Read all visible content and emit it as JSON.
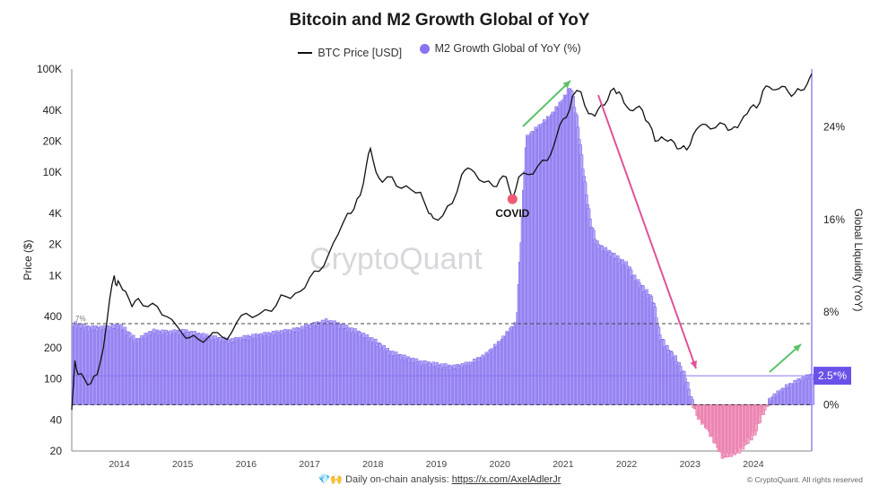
{
  "chart_data": {
    "type": "bar",
    "title": "Bitcoin and M2 Growth Global of YoY",
    "legend": [
      "BTC Price [USD]",
      "M2 Growth Global of YoY (%)"
    ],
    "legend_placement": "top-center",
    "ylabel_left": "Price ($)",
    "ylabel_right": "Global Liquidity (YoY)",
    "y_left_scale": "log",
    "y_left_ticks": [
      "100K",
      "40K",
      "20K",
      "10K",
      "4K",
      "2K",
      "1K",
      "400",
      "200",
      "100",
      "40",
      "20"
    ],
    "y_right_ticks": [
      "24%",
      "16%",
      "8%",
      "0%"
    ],
    "x_ticks": [
      "2014",
      "2015",
      "2016",
      "2017",
      "2018",
      "2019",
      "2020",
      "2021",
      "2022",
      "2023",
      "2024"
    ],
    "x_range": [
      2013.25,
      2024.92
    ],
    "ylim_left": [
      20,
      100000
    ],
    "ylim_right": [
      -4,
      29
    ],
    "reference_lines": [
      {
        "label": "7%",
        "value": 7
      },
      {
        "label": "2.5*%",
        "value": 2.5
      }
    ],
    "annotations": [
      "COVID"
    ],
    "watermark": "CryptoQuant",
    "btc_price": {
      "name": "BTC Price [USD]",
      "x": [
        2013.25,
        2013.3,
        2013.35,
        2013.45,
        2013.55,
        2013.65,
        2013.75,
        2013.85,
        2013.92,
        2013.96,
        2014.0,
        2014.1,
        2014.2,
        2014.3,
        2014.45,
        2014.6,
        2014.75,
        2014.9,
        2015.0,
        2015.1,
        2015.25,
        2015.4,
        2015.55,
        2015.7,
        2015.85,
        2016.0,
        2016.2,
        2016.4,
        2016.55,
        2016.7,
        2016.85,
        2017.0,
        2017.15,
        2017.3,
        2017.45,
        2017.6,
        2017.7,
        2017.8,
        2017.9,
        2017.96,
        2018.05,
        2018.15,
        2018.3,
        2018.45,
        2018.6,
        2018.75,
        2018.88,
        2018.95,
        2019.1,
        2019.25,
        2019.4,
        2019.5,
        2019.6,
        2019.75,
        2019.9,
        2020.0,
        2020.1,
        2020.2,
        2020.3,
        2020.45,
        2020.6,
        2020.75,
        2020.85,
        2020.95,
        2021.05,
        2021.15,
        2021.28,
        2021.4,
        2021.5,
        2021.6,
        2021.7,
        2021.8,
        2021.88,
        2021.96,
        2022.05,
        2022.15,
        2022.25,
        2022.35,
        2022.45,
        2022.55,
        2022.65,
        2022.75,
        2022.85,
        2022.95,
        2023.05,
        2023.15,
        2023.25,
        2023.4,
        2023.55,
        2023.65,
        2023.75,
        2023.85,
        2023.95,
        2024.05,
        2024.15,
        2024.25,
        2024.35,
        2024.45,
        2024.55,
        2024.65,
        2024.75,
        2024.85,
        2024.92
      ],
      "y": [
        50,
        150,
        110,
        100,
        90,
        110,
        200,
        600,
        1000,
        800,
        850,
        700,
        500,
        600,
        500,
        500,
        400,
        330,
        270,
        250,
        240,
        250,
        280,
        240,
        350,
        430,
        420,
        450,
        650,
        600,
        700,
        950,
        1100,
        1600,
        2500,
        4000,
        4400,
        6000,
        12000,
        17000,
        10000,
        8000,
        9000,
        7000,
        6800,
        6400,
        4000,
        3600,
        3800,
        5000,
        9500,
        11000,
        10000,
        8000,
        7300,
        8500,
        9000,
        5500,
        9000,
        9500,
        11500,
        13000,
        18000,
        29000,
        34000,
        55000,
        60000,
        37000,
        35000,
        45000,
        50000,
        65000,
        60000,
        47000,
        40000,
        42000,
        40000,
        30000,
        20000,
        22000,
        20000,
        19500,
        17000,
        16500,
        23000,
        28000,
        29000,
        27000,
        29000,
        26000,
        27000,
        35000,
        42000,
        42000,
        62000,
        67000,
        63000,
        68000,
        60000,
        58000,
        62000,
        72000,
        90000
      ]
    },
    "m2_growth": {
      "name": "M2 Growth Global of YoY (%)",
      "x": [
        2013.25,
        2013.5,
        2013.75,
        2014.0,
        2014.25,
        2014.5,
        2014.75,
        2015.0,
        2015.25,
        2015.5,
        2015.75,
        2016.0,
        2016.25,
        2016.5,
        2016.75,
        2017.0,
        2017.25,
        2017.5,
        2017.75,
        2018.0,
        2018.25,
        2018.5,
        2018.75,
        2019.0,
        2019.25,
        2019.5,
        2019.75,
        2020.0,
        2020.15,
        2020.25,
        2020.4,
        2020.6,
        2020.8,
        2021.0,
        2021.1,
        2021.2,
        2021.3,
        2021.4,
        2021.5,
        2021.6,
        2021.75,
        2022.0,
        2022.1,
        2022.25,
        2022.4,
        2022.5,
        2022.6,
        2022.75,
        2022.9,
        2023.0,
        2023.1,
        2023.25,
        2023.5,
        2023.75,
        2024.0,
        2024.1,
        2024.25,
        2024.5,
        2024.75,
        2024.9
      ],
      "y": [
        7.0,
        6.6,
        6.6,
        6.8,
        5.5,
        6.3,
        6.2,
        6.3,
        6.0,
        5.7,
        5.5,
        5.8,
        6.0,
        6.2,
        6.4,
        6.8,
        7.2,
        6.8,
        6.2,
        5.5,
        4.5,
        4.0,
        3.6,
        3.4,
        3.2,
        3.5,
        4.2,
        5.5,
        6.5,
        7.0,
        23.0,
        24.0,
        25.0,
        26.5,
        27.5,
        24.5,
        20.0,
        16.0,
        14.0,
        13.5,
        13.0,
        12.0,
        11.0,
        10.0,
        9.0,
        6.0,
        5.0,
        4.0,
        2.5,
        0.5,
        -1.0,
        -2.0,
        -4.5,
        -4.0,
        -2.5,
        -1.0,
        0.5,
        1.5,
        2.2,
        2.5
      ]
    }
  },
  "colors": {
    "bar_positive": "#b3a4f7",
    "bar_positive_stroke": "#6a52e8",
    "bar_negative": "#f3a6c8",
    "bar_negative_stroke": "#e0528f",
    "btc_line": "#111111",
    "legend_m2": "#8a73f0",
    "arrow_green": "#5cc16a",
    "arrow_pink": "#e0529b",
    "covid_dot": "#f05a73",
    "watermark": "#d7d7dc"
  },
  "footer": {
    "prefix": "Daily on-chain analysis:",
    "link": "https://x.com/AxelAdlerJr",
    "icon": "diamond-hands-icon",
    "copyright": "© CryptoQuant. All rights reserved"
  }
}
